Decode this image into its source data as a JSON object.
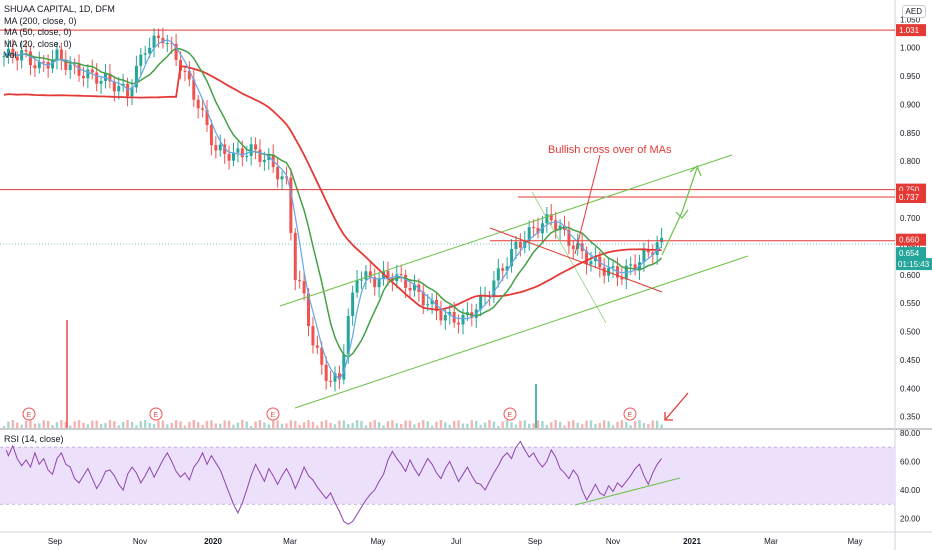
{
  "legend": {
    "symbol": "SHUAA CAPITAL, 1D, DFM",
    "ma200": "MA (200, close, 0)",
    "ma50": "MA (50, close, 0)",
    "ma20": "MA (20, close, 0)",
    "vol": "Vol"
  },
  "currency": "AED",
  "rsi_label": "RSI (14, close)",
  "annotation": "Bullish cross over of MAs",
  "countdown": "01:15:43",
  "colors": {
    "up": "#26a69a",
    "down": "#ef5350",
    "ma200": "#e53935",
    "ma50": "#43a047",
    "ma20": "#64a6e8",
    "rsi": "#8e44ad",
    "rsi_band": "#ede0fb",
    "level": "#e53935",
    "channel": "#6cc04a"
  },
  "chart_data": {
    "type": "candlestick",
    "x_ticks": [
      "Sep",
      "Nov",
      "2020",
      "Mar",
      "May",
      "Jul",
      "Sep",
      "Nov",
      "2021",
      "Mar",
      "May"
    ],
    "y_ticks": [
      "1.050",
      "1.000",
      "0.950",
      "0.900",
      "0.850",
      "0.800",
      "0.750",
      "0.700",
      "0.650",
      "0.600",
      "0.550",
      "0.500",
      "0.450",
      "0.400",
      "0.350"
    ],
    "ylim": [
      0.33,
      1.07
    ],
    "price_labels": [
      {
        "value": 1.031,
        "text": "1.031"
      },
      {
        "value": 0.75,
        "text": "0.750"
      },
      {
        "value": 0.737,
        "text": "0.737"
      },
      {
        "value": 0.66,
        "text": "0.660"
      },
      {
        "value": 0.654,
        "text": "0.654"
      }
    ],
    "earnings_marker": "E",
    "rsi": {
      "y_ticks": [
        "80.00",
        "60.00",
        "40.00",
        "20.00"
      ],
      "ylim": [
        12,
        82
      ],
      "band": [
        30,
        70
      ],
      "points": [
        [
          0.5,
          68
        ],
        [
          1,
          64
        ],
        [
          2,
          71
        ],
        [
          3,
          62
        ],
        [
          4,
          57
        ],
        [
          5,
          61
        ],
        [
          6,
          56
        ],
        [
          7,
          66
        ],
        [
          8,
          58
        ],
        [
          9,
          62
        ],
        [
          10,
          54
        ],
        [
          11,
          51
        ],
        [
          12,
          62
        ],
        [
          13,
          66
        ],
        [
          14,
          58
        ],
        [
          15,
          56
        ],
        [
          16,
          48
        ],
        [
          17,
          45
        ],
        [
          18,
          50
        ],
        [
          19,
          55
        ],
        [
          20,
          48
        ],
        [
          21,
          41
        ],
        [
          22,
          46
        ],
        [
          23,
          53
        ],
        [
          24,
          54
        ],
        [
          25,
          50
        ],
        [
          26,
          44
        ],
        [
          27,
          40
        ],
        [
          28,
          51
        ],
        [
          29,
          56
        ],
        [
          30,
          52
        ],
        [
          31,
          45
        ],
        [
          32,
          50
        ],
        [
          33,
          56
        ],
        [
          34,
          49
        ],
        [
          35,
          55
        ],
        [
          36,
          61
        ],
        [
          37,
          66
        ],
        [
          38,
          60
        ],
        [
          39,
          53
        ],
        [
          40,
          49
        ],
        [
          41,
          52
        ],
        [
          42,
          47
        ],
        [
          43,
          56
        ],
        [
          44,
          60
        ],
        [
          45,
          66
        ],
        [
          46,
          58
        ],
        [
          47,
          64
        ],
        [
          48,
          59
        ],
        [
          49,
          54
        ],
        [
          50,
          46
        ],
        [
          51,
          38
        ],
        [
          52,
          30
        ],
        [
          53,
          24
        ],
        [
          54,
          31
        ],
        [
          55,
          40
        ],
        [
          56,
          50
        ],
        [
          57,
          58
        ],
        [
          58,
          52
        ],
        [
          59,
          46
        ],
        [
          60,
          55
        ],
        [
          61,
          50
        ],
        [
          62,
          44
        ],
        [
          63,
          50
        ],
        [
          64,
          55
        ],
        [
          65,
          49
        ],
        [
          66,
          41
        ],
        [
          67,
          48
        ],
        [
          68,
          56
        ],
        [
          69,
          50
        ],
        [
          70,
          47
        ],
        [
          71,
          42
        ],
        [
          72,
          38
        ],
        [
          73,
          34
        ],
        [
          74,
          38
        ],
        [
          75,
          31
        ],
        [
          76,
          25
        ],
        [
          77,
          18
        ],
        [
          78,
          16
        ],
        [
          79,
          18
        ],
        [
          80,
          23
        ],
        [
          81,
          28
        ],
        [
          82,
          33
        ],
        [
          83,
          37
        ],
        [
          84,
          40
        ],
        [
          85,
          46
        ],
        [
          86,
          51
        ],
        [
          87,
          61
        ],
        [
          88,
          67
        ],
        [
          89,
          62
        ],
        [
          90,
          58
        ],
        [
          91,
          53
        ],
        [
          92,
          61
        ],
        [
          93,
          55
        ],
        [
          94,
          50
        ],
        [
          95,
          56
        ],
        [
          96,
          62
        ],
        [
          97,
          58
        ],
        [
          98,
          52
        ],
        [
          99,
          48
        ],
        [
          100,
          55
        ],
        [
          101,
          60
        ],
        [
          102,
          53
        ],
        [
          103,
          46
        ],
        [
          104,
          51
        ],
        [
          105,
          56
        ],
        [
          106,
          50
        ],
        [
          107,
          45
        ],
        [
          108,
          44
        ],
        [
          109,
          40
        ],
        [
          110,
          46
        ],
        [
          111,
          52
        ],
        [
          112,
          57
        ],
        [
          113,
          63
        ],
        [
          114,
          66
        ],
        [
          115,
          62
        ],
        [
          116,
          70
        ],
        [
          117,
          74
        ],
        [
          118,
          68
        ],
        [
          119,
          63
        ],
        [
          120,
          66
        ],
        [
          121,
          60
        ],
        [
          122,
          56
        ],
        [
          123,
          60
        ],
        [
          124,
          68
        ],
        [
          125,
          63
        ],
        [
          126,
          55
        ],
        [
          127,
          52
        ],
        [
          128,
          48
        ],
        [
          129,
          54
        ],
        [
          130,
          50
        ],
        [
          131,
          40
        ],
        [
          132,
          33
        ],
        [
          133,
          38
        ],
        [
          134,
          44
        ],
        [
          135,
          38
        ],
        [
          136,
          36
        ],
        [
          137,
          43
        ],
        [
          138,
          39
        ],
        [
          139,
          45
        ],
        [
          140,
          42
        ],
        [
          141,
          46
        ],
        [
          142,
          50
        ],
        [
          143,
          55
        ],
        [
          144,
          58
        ],
        [
          145,
          50
        ],
        [
          146,
          44
        ],
        [
          147,
          52
        ],
        [
          148,
          58
        ],
        [
          149,
          62
        ]
      ]
    }
  }
}
